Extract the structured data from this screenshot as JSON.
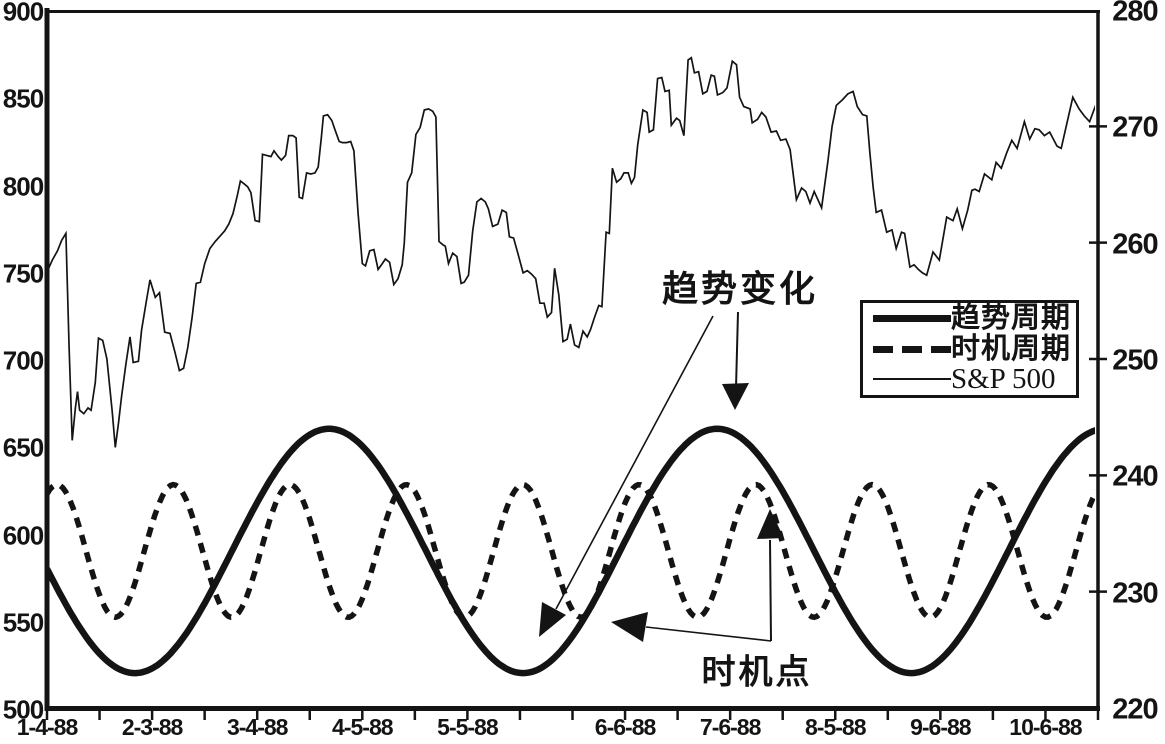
{
  "figure": {
    "background": "#ffffff",
    "ink": "#141414"
  },
  "annotations": {
    "trend_change_label": "趋势变化",
    "timing_point_label": "时机点"
  },
  "legend": {
    "items": [
      {
        "label": "趋势周期",
        "swatch": "thick-solid-line"
      },
      {
        "label": "时机周期",
        "swatch": "dashed-line"
      },
      {
        "label": "S&P 500",
        "swatch": "thin-solid-line"
      }
    ]
  },
  "chart_data": {
    "type": "line",
    "title": "",
    "grid": false,
    "legend_position": "middle-right-inside",
    "x_axis": {
      "tick_count": 21,
      "labels": [
        "1-4-88",
        "2-3-88",
        "3-4-88",
        "4-5-88",
        "5-5-88",
        "6-6-88",
        "7-6-88",
        "8-5-88",
        "9-6-88",
        "10-6-88"
      ],
      "label_tick_indices": [
        0,
        2,
        4,
        6,
        8,
        11,
        13,
        15,
        17,
        19
      ]
    },
    "left_axis": {
      "range": [
        500,
        900
      ],
      "ticks": [
        900,
        850,
        800,
        750,
        700,
        650,
        600,
        550,
        500
      ]
    },
    "right_axis": {
      "range": [
        220,
        280
      ],
      "ticks": [
        280,
        270,
        260,
        250,
        240,
        230,
        220
      ]
    },
    "series": [
      {
        "name": "趋势周期",
        "axis": "left",
        "style": "thick-solid",
        "model": "sine",
        "mean": 590,
        "amplitude": 70,
        "period": 0.3693,
        "phase": "trough",
        "phase_at": 0.0837
      },
      {
        "name": "时机周期",
        "axis": "left",
        "style": "dashed",
        "model": "sine",
        "mean": 590,
        "amplitude": 38,
        "period": 0.1108,
        "phase": "peak",
        "phase_at": 0.0095
      },
      {
        "name": "S&P 500",
        "axis": "right",
        "style": "thin-solid",
        "model": "points",
        "points": [
          [
            0,
            257.5
          ],
          [
            0.005,
            258.5
          ],
          [
            0.01,
            259.3
          ],
          [
            0.014,
            260.2
          ],
          [
            0.018,
            260.8
          ],
          [
            0.021,
            251
          ],
          [
            0.024,
            243
          ],
          [
            0.027,
            245.8
          ],
          [
            0.029,
            247.2
          ],
          [
            0.031,
            245.6
          ],
          [
            0.035,
            245.3
          ],
          [
            0.039,
            245.8
          ],
          [
            0.042,
            245.6
          ],
          [
            0.046,
            248
          ],
          [
            0.049,
            251.8
          ],
          [
            0.053,
            251.6
          ],
          [
            0.057,
            250
          ],
          [
            0.062,
            245.5
          ],
          [
            0.065,
            242.4
          ],
          [
            0.068,
            244.5
          ],
          [
            0.071,
            246.8
          ],
          [
            0.075,
            249.5
          ],
          [
            0.079,
            251.9
          ],
          [
            0.082,
            249.7
          ],
          [
            0.087,
            249.8
          ],
          [
            0.09,
            252.5
          ],
          [
            0.095,
            255.2
          ],
          [
            0.098,
            256.8
          ],
          [
            0.103,
            255.3
          ],
          [
            0.107,
            255.7
          ],
          [
            0.112,
            252.3
          ],
          [
            0.117,
            252.2
          ],
          [
            0.122,
            250.5
          ],
          [
            0.126,
            249
          ],
          [
            0.13,
            249.2
          ],
          [
            0.134,
            251
          ],
          [
            0.138,
            253.5
          ],
          [
            0.142,
            256.5
          ],
          [
            0.146,
            256.6
          ],
          [
            0.15,
            258.2
          ],
          [
            0.155,
            259.5
          ],
          [
            0.16,
            260.1
          ],
          [
            0.165,
            260.6
          ],
          [
            0.169,
            261
          ],
          [
            0.173,
            261.6
          ],
          [
            0.177,
            262.5
          ],
          [
            0.181,
            264
          ],
          [
            0.184,
            265.3
          ],
          [
            0.187,
            265.1
          ],
          [
            0.191,
            264.8
          ],
          [
            0.194,
            264.3
          ],
          [
            0.198,
            261.9
          ],
          [
            0.202,
            261.8
          ],
          [
            0.205,
            267.6
          ],
          [
            0.209,
            267.5
          ],
          [
            0.213,
            267.4
          ],
          [
            0.216,
            267.9
          ],
          [
            0.22,
            267.4
          ],
          [
            0.223,
            267.1
          ],
          [
            0.227,
            267.5
          ],
          [
            0.23,
            269.2
          ],
          [
            0.234,
            269.2
          ],
          [
            0.237,
            269
          ],
          [
            0.24,
            263.9
          ],
          [
            0.243,
            263.8
          ],
          [
            0.247,
            266
          ],
          [
            0.251,
            265.9
          ],
          [
            0.255,
            266
          ],
          [
            0.258,
            266.5
          ],
          [
            0.261,
            269
          ],
          [
            0.263,
            270.9
          ],
          [
            0.267,
            271
          ],
          [
            0.271,
            270.5
          ],
          [
            0.274,
            269.7
          ],
          [
            0.278,
            268.7
          ],
          [
            0.281,
            268.6
          ],
          [
            0.285,
            268.6
          ],
          [
            0.289,
            268.7
          ],
          [
            0.292,
            267.9
          ],
          [
            0.296,
            262.5
          ],
          [
            0.3,
            258.2
          ],
          [
            0.303,
            258
          ],
          [
            0.307,
            259.3
          ],
          [
            0.311,
            259.4
          ],
          [
            0.315,
            257.7
          ],
          [
            0.319,
            258.2
          ],
          [
            0.322,
            258.6
          ],
          [
            0.326,
            258.3
          ],
          [
            0.33,
            256.4
          ],
          [
            0.334,
            256.9
          ],
          [
            0.338,
            258.1
          ],
          [
            0.34,
            260
          ],
          [
            0.343,
            265.2
          ],
          [
            0.347,
            266
          ],
          [
            0.351,
            269.3
          ],
          [
            0.355,
            269.9
          ],
          [
            0.359,
            271.4
          ],
          [
            0.363,
            271.5
          ],
          [
            0.367,
            271.3
          ],
          [
            0.37,
            270.8
          ],
          [
            0.373,
            260.1
          ],
          [
            0.377,
            259.8
          ],
          [
            0.379,
            259.7
          ],
          [
            0.382,
            258.2
          ],
          [
            0.386,
            259.1
          ],
          [
            0.39,
            258.8
          ],
          [
            0.394,
            256.5
          ],
          [
            0.397,
            256.6
          ],
          [
            0.401,
            257.2
          ],
          [
            0.405,
            261
          ],
          [
            0.409,
            263.5
          ],
          [
            0.413,
            263.8
          ],
          [
            0.417,
            263.5
          ],
          [
            0.42,
            262.9
          ],
          [
            0.424,
            261.4
          ],
          [
            0.429,
            261.6
          ],
          [
            0.433,
            262.8
          ],
          [
            0.437,
            262.6
          ],
          [
            0.44,
            260.5
          ],
          [
            0.444,
            260.4
          ],
          [
            0.448,
            259.1
          ],
          [
            0.453,
            257.4
          ],
          [
            0.457,
            257.6
          ],
          [
            0.461,
            257.3
          ],
          [
            0.465,
            256.9
          ],
          [
            0.469,
            254.8
          ],
          [
            0.473,
            254.8
          ],
          [
            0.476,
            253.6
          ],
          [
            0.48,
            254
          ],
          [
            0.483,
            257.8
          ],
          [
            0.487,
            255.5
          ],
          [
            0.491,
            251.5
          ],
          [
            0.495,
            251.7
          ],
          [
            0.498,
            253
          ],
          [
            0.502,
            251.2
          ],
          [
            0.506,
            251
          ],
          [
            0.51,
            252.4
          ],
          [
            0.514,
            251.9
          ],
          [
            0.517,
            252.5
          ],
          [
            0.521,
            253.6
          ],
          [
            0.525,
            254.6
          ],
          [
            0.528,
            254.5
          ],
          [
            0.532,
            260.9
          ],
          [
            0.535,
            260.8
          ],
          [
            0.538,
            266.4
          ],
          [
            0.542,
            265.2
          ],
          [
            0.546,
            265.5
          ],
          [
            0.549,
            266
          ],
          [
            0.553,
            266
          ],
          [
            0.556,
            265.1
          ],
          [
            0.559,
            265.6
          ],
          [
            0.562,
            268.4
          ],
          [
            0.567,
            271.4
          ],
          [
            0.571,
            271.2
          ],
          [
            0.573,
            269.5
          ],
          [
            0.577,
            269.7
          ],
          [
            0.581,
            274.1
          ],
          [
            0.585,
            274.2
          ],
          [
            0.588,
            273
          ],
          [
            0.592,
            273.1
          ],
          [
            0.594,
            270.1
          ],
          [
            0.599,
            270.7
          ],
          [
            0.602,
            270.5
          ],
          [
            0.606,
            269.2
          ],
          [
            0.61,
            275.7
          ],
          [
            0.613,
            275.9
          ],
          [
            0.616,
            274.6
          ],
          [
            0.62,
            274.7
          ],
          [
            0.624,
            272.8
          ],
          [
            0.628,
            273
          ],
          [
            0.632,
            274.4
          ],
          [
            0.635,
            274.3
          ],
          [
            0.638,
            272.7
          ],
          [
            0.643,
            272.9
          ],
          [
            0.647,
            273.3
          ],
          [
            0.652,
            275.6
          ],
          [
            0.656,
            275.3
          ],
          [
            0.659,
            272.5
          ],
          [
            0.663,
            271.7
          ],
          [
            0.669,
            271.5
          ],
          [
            0.671,
            270.3
          ],
          [
            0.676,
            270.6
          ],
          [
            0.68,
            271.2
          ],
          [
            0.684,
            270.8
          ],
          [
            0.689,
            269.5
          ],
          [
            0.694,
            269.6
          ],
          [
            0.698,
            268.8
          ],
          [
            0.703,
            268.9
          ],
          [
            0.707,
            268
          ],
          [
            0.713,
            263.7
          ],
          [
            0.718,
            264.7
          ],
          [
            0.722,
            264.4
          ],
          [
            0.726,
            263.4
          ],
          [
            0.73,
            264.4
          ],
          [
            0.737,
            263
          ],
          [
            0.743,
            267
          ],
          [
            0.747,
            270
          ],
          [
            0.751,
            271.8
          ],
          [
            0.757,
            272.3
          ],
          [
            0.762,
            272.8
          ],
          [
            0.767,
            273
          ],
          [
            0.771,
            271.7
          ],
          [
            0.776,
            271
          ],
          [
            0.78,
            270.9
          ],
          [
            0.783,
            267.7
          ],
          [
            0.786,
            264.8
          ],
          [
            0.789,
            262.6
          ],
          [
            0.794,
            262.8
          ],
          [
            0.799,
            260.9
          ],
          [
            0.804,
            261.1
          ],
          [
            0.808,
            259.5
          ],
          [
            0.813,
            260.9
          ],
          [
            0.816,
            260.8
          ],
          [
            0.821,
            257.9
          ],
          [
            0.825,
            258.1
          ],
          [
            0.829,
            257.7
          ],
          [
            0.833,
            257.4
          ],
          [
            0.837,
            257.2
          ],
          [
            0.843,
            259.2
          ],
          [
            0.849,
            258.5
          ],
          [
            0.856,
            262.2
          ],
          [
            0.862,
            261.9
          ],
          [
            0.866,
            262.9
          ],
          [
            0.871,
            261.2
          ],
          [
            0.876,
            262.8
          ],
          [
            0.88,
            264.5
          ],
          [
            0.883,
            264.6
          ],
          [
            0.887,
            264.4
          ],
          [
            0.892,
            265.9
          ],
          [
            0.899,
            265.4
          ],
          [
            0.903,
            266.9
          ],
          [
            0.908,
            266.4
          ],
          [
            0.913,
            267.7
          ],
          [
            0.918,
            268.8
          ],
          [
            0.923,
            268.1
          ],
          [
            0.93,
            270.4
          ],
          [
            0.935,
            268.9
          ],
          [
            0.94,
            269.8
          ],
          [
            0.944,
            269.7
          ],
          [
            0.949,
            269.2
          ],
          [
            0.954,
            269.5
          ],
          [
            0.961,
            268.3
          ],
          [
            0.965,
            268.1
          ],
          [
            0.976,
            272.5
          ],
          [
            0.982,
            271.5
          ],
          [
            0.987,
            270.9
          ],
          [
            0.992,
            270.4
          ],
          [
            0.999,
            272.1
          ]
        ]
      }
    ]
  }
}
